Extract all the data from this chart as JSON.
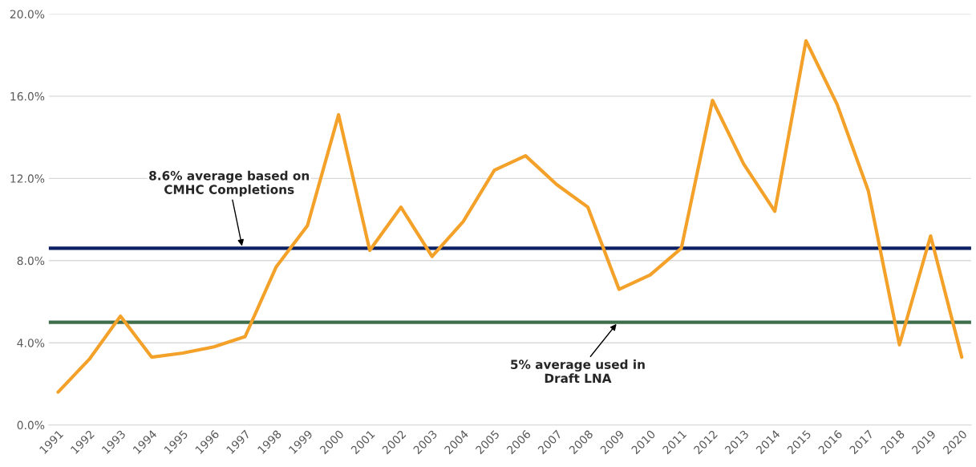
{
  "chart_data": {
    "type": "line",
    "categories": [
      "1991",
      "1992",
      "1993",
      "1994",
      "1995",
      "1996",
      "1997",
      "1998",
      "1999",
      "2000",
      "2001",
      "2002",
      "2003",
      "2004",
      "2005",
      "2006",
      "2007",
      "2008",
      "2009",
      "2010",
      "2011",
      "2012",
      "2013",
      "2014",
      "2015",
      "2016",
      "2017",
      "2018",
      "2019",
      "2020"
    ],
    "series": [
      {
        "color": "#f4a12a",
        "values": [
          1.6,
          3.2,
          5.3,
          3.3,
          3.5,
          3.8,
          4.3,
          7.7,
          9.7,
          15.1,
          8.5,
          10.6,
          8.2,
          9.9,
          12.4,
          13.1,
          11.7,
          10.6,
          6.6,
          7.3,
          8.6,
          15.8,
          12.7,
          10.4,
          18.7,
          15.6,
          11.4,
          3.9,
          9.2,
          3.3
        ]
      }
    ],
    "ylim": [
      0,
      20
    ],
    "yticks": [
      {
        "value": 0,
        "label": "0.0%"
      },
      {
        "value": 4,
        "label": "4.0%"
      },
      {
        "value": 8,
        "label": "8.0%"
      },
      {
        "value": 12,
        "label": "12.0%"
      },
      {
        "value": 16,
        "label": "16.0%"
      },
      {
        "value": 20,
        "label": "20.0%"
      }
    ],
    "grid": "y",
    "ref_lines": [
      {
        "axis": "y",
        "value": 8.6,
        "color": "#0b2161",
        "label": "8.6% average based on\nCMHC Completions"
      },
      {
        "axis": "y",
        "value": 5,
        "color": "#3f6e4a",
        "label": "5% average used in\nDraft LNA"
      }
    ]
  }
}
